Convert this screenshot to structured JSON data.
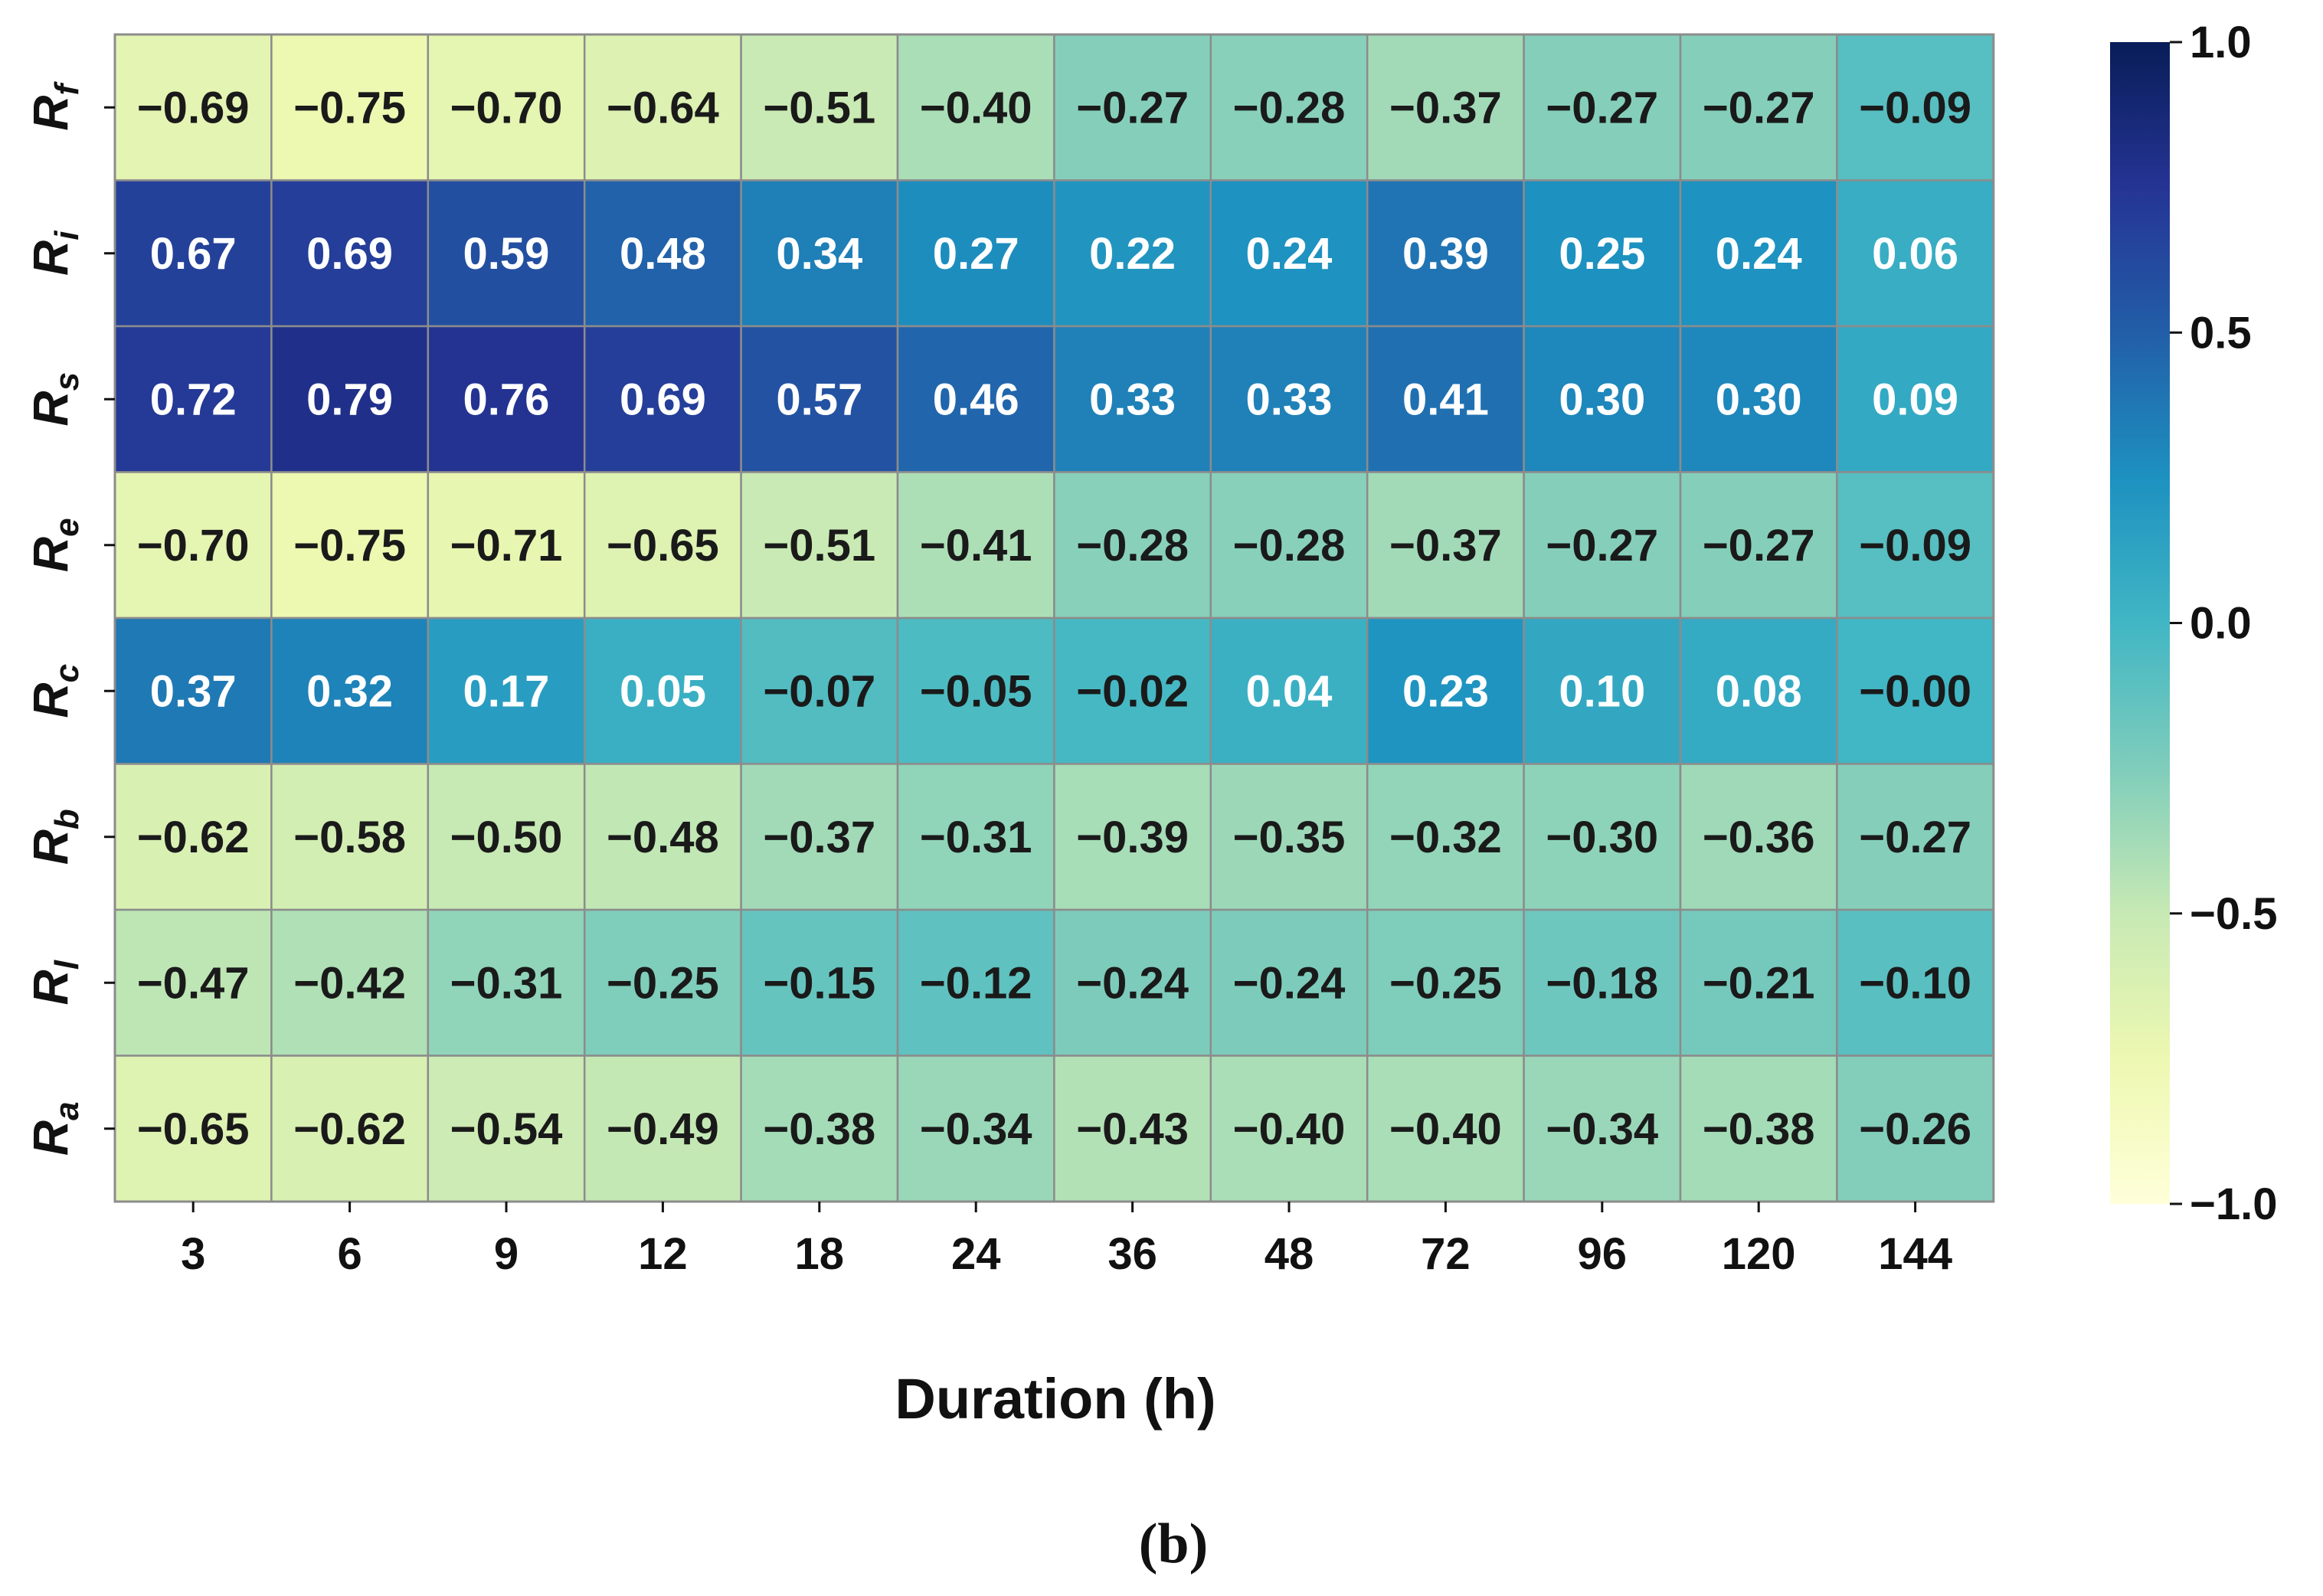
{
  "chart_data": {
    "type": "heatmap",
    "title": "",
    "xlabel": "Duration (h)",
    "ylabel": "",
    "caption": "(b)",
    "x_categories": [
      "3",
      "6",
      "9",
      "12",
      "18",
      "24",
      "36",
      "48",
      "72",
      "96",
      "120",
      "144"
    ],
    "y_categories": [
      {
        "main": "R",
        "sub": "f"
      },
      {
        "main": "R",
        "sub": "i"
      },
      {
        "main": "R",
        "sub": "s"
      },
      {
        "main": "R",
        "sub": "e"
      },
      {
        "main": "R",
        "sub": "c"
      },
      {
        "main": "R",
        "sub": "b"
      },
      {
        "main": "R",
        "sub": "l"
      },
      {
        "main": "R",
        "sub": "a"
      }
    ],
    "values": [
      [
        -0.69,
        -0.75,
        -0.7,
        -0.64,
        -0.51,
        -0.4,
        -0.27,
        -0.28,
        -0.37,
        -0.27,
        -0.27,
        -0.09
      ],
      [
        0.67,
        0.69,
        0.59,
        0.48,
        0.34,
        0.27,
        0.22,
        0.24,
        0.39,
        0.25,
        0.24,
        0.06
      ],
      [
        0.72,
        0.79,
        0.76,
        0.69,
        0.57,
        0.46,
        0.33,
        0.33,
        0.41,
        0.3,
        0.3,
        0.09
      ],
      [
        -0.7,
        -0.75,
        -0.71,
        -0.65,
        -0.51,
        -0.41,
        -0.28,
        -0.28,
        -0.37,
        -0.27,
        -0.27,
        -0.09
      ],
      [
        0.37,
        0.32,
        0.17,
        0.05,
        -0.07,
        -0.05,
        -0.02,
        0.04,
        0.23,
        0.1,
        0.08,
        -0.0
      ],
      [
        -0.62,
        -0.58,
        -0.5,
        -0.48,
        -0.37,
        -0.31,
        -0.39,
        -0.35,
        -0.32,
        -0.3,
        -0.36,
        -0.27
      ],
      [
        -0.47,
        -0.42,
        -0.31,
        -0.25,
        -0.15,
        -0.12,
        -0.24,
        -0.24,
        -0.25,
        -0.18,
        -0.21,
        -0.1
      ],
      [
        -0.65,
        -0.62,
        -0.54,
        -0.49,
        -0.38,
        -0.34,
        -0.43,
        -0.4,
        -0.4,
        -0.34,
        -0.38,
        -0.26
      ]
    ],
    "value_labels": [
      [
        "−0.69",
        "−0.75",
        "−0.70",
        "−0.64",
        "−0.51",
        "−0.40",
        "−0.27",
        "−0.28",
        "−0.37",
        "−0.27",
        "−0.27",
        "−0.09"
      ],
      [
        "0.67",
        "0.69",
        "0.59",
        "0.48",
        "0.34",
        "0.27",
        "0.22",
        "0.24",
        "0.39",
        "0.25",
        "0.24",
        "0.06"
      ],
      [
        "0.72",
        "0.79",
        "0.76",
        "0.69",
        "0.57",
        "0.46",
        "0.33",
        "0.33",
        "0.41",
        "0.30",
        "0.30",
        "0.09"
      ],
      [
        "−0.70",
        "−0.75",
        "−0.71",
        "−0.65",
        "−0.51",
        "−0.41",
        "−0.28",
        "−0.28",
        "−0.37",
        "−0.27",
        "−0.27",
        "−0.09"
      ],
      [
        "0.37",
        "0.32",
        "0.17",
        "0.05",
        "−0.07",
        "−0.05",
        "−0.02",
        "0.04",
        "0.23",
        "0.10",
        "0.08",
        "−0.00"
      ],
      [
        "−0.62",
        "−0.58",
        "−0.50",
        "−0.48",
        "−0.37",
        "−0.31",
        "−0.39",
        "−0.35",
        "−0.32",
        "−0.30",
        "−0.36",
        "−0.27"
      ],
      [
        "−0.47",
        "−0.42",
        "−0.31",
        "−0.25",
        "−0.15",
        "−0.12",
        "−0.24",
        "−0.24",
        "−0.25",
        "−0.18",
        "−0.21",
        "−0.10"
      ],
      [
        "−0.65",
        "−0.62",
        "−0.54",
        "−0.49",
        "−0.38",
        "−0.34",
        "−0.43",
        "−0.40",
        "−0.40",
        "−0.34",
        "−0.38",
        "−0.26"
      ]
    ],
    "colorbar": {
      "range": [
        -1.0,
        1.0
      ],
      "ticks": [
        1.0,
        0.5,
        0.0,
        -0.5,
        -1.0
      ],
      "tick_labels": [
        "1.0",
        "0.5",
        "0.0",
        "−0.5",
        "−1.0"
      ],
      "colormap": "YlGnBu",
      "colormap_stops": [
        "#ffffd9",
        "#edf8b1",
        "#c7e9b4",
        "#7fcdbb",
        "#41b6c4",
        "#1d91c0",
        "#225ea8",
        "#253494",
        "#081d58"
      ]
    },
    "grid_line_color": "#8c8c8c",
    "dark_text_color": "#1a1a1a",
    "light_text_color": "#ffffff"
  }
}
